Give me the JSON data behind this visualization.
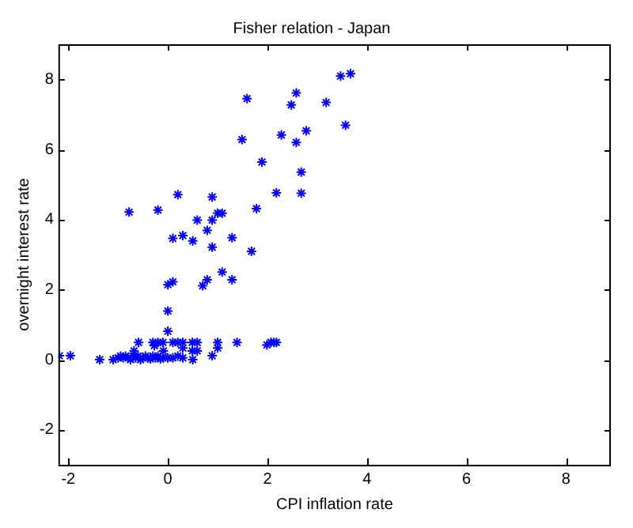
{
  "chart_data": {
    "type": "scatter",
    "title": "Fisher relation - Japan",
    "xlabel": "CPI inflation rate",
    "ylabel": "overnight interest rate",
    "marker": "cross",
    "grid": false,
    "xlim": [
      -2.2,
      8.9
    ],
    "ylim": [
      -3,
      9
    ],
    "xticks": [
      -2,
      0,
      2,
      4,
      6,
      8
    ],
    "yticks": [
      -2,
      0,
      2,
      4,
      6,
      8
    ],
    "series": [
      {
        "color": "#0000ff",
        "x": [
          3.67,
          3.47,
          2.58,
          1.59,
          2.48,
          3.18,
          3.57,
          2.78,
          2.28,
          1.49,
          2.58,
          1.89,
          2.68,
          2.18,
          2.68,
          1.78,
          0.2,
          0.89,
          -0.78,
          -0.2,
          1.0,
          1.09,
          0.59,
          0.89,
          0.79,
          0.1,
          0.3,
          0.5,
          1.29,
          0.89,
          1.68,
          1.09,
          1.29,
          0.79,
          0.7,
          0,
          0.1,
          0,
          0,
          -0.59,
          -0.3,
          -0.2,
          -0.1,
          0.1,
          0.2,
          0.3,
          0.49,
          0.59,
          1.0,
          1.39,
          1.99,
          2.07,
          2.13,
          2.18,
          1.0,
          0.3,
          -0.27,
          -0.68,
          0.49,
          0.59,
          -0.09,
          -2.18,
          -1.96,
          0.89,
          -1.37,
          0.5,
          -1.1,
          -1.0,
          -0.95,
          -0.9,
          -0.85,
          -0.8,
          -0.7,
          -0.65,
          -0.6,
          -0.5,
          -0.45,
          -0.4,
          -0.3,
          -0.25,
          -0.2,
          -0.1,
          0,
          0.1,
          0.2,
          0.3,
          -0.75,
          -0.55,
          -0.35,
          -0.15
        ],
        "values": [
          8.16,
          8.09,
          7.61,
          7.45,
          7.27,
          7.34,
          6.69,
          6.53,
          6.41,
          6.28,
          6.2,
          5.64,
          5.35,
          4.76,
          4.75,
          4.31,
          4.71,
          4.64,
          4.21,
          4.27,
          4.18,
          4.18,
          3.98,
          3.98,
          3.69,
          3.46,
          3.54,
          3.39,
          3.48,
          3.21,
          3.09,
          2.5,
          2.28,
          2.28,
          2.11,
          2.14,
          2.22,
          1.39,
          0.81,
          0.49,
          0.49,
          0.49,
          0.49,
          0.49,
          0.49,
          0.49,
          0.49,
          0.49,
          0.49,
          0.49,
          0.42,
          0.49,
          0.49,
          0.49,
          0.33,
          0.33,
          0.4,
          0.25,
          0.25,
          0.25,
          0.25,
          0.11,
          0.11,
          0.11,
          0,
          0,
          0,
          0.05,
          0.1,
          0.05,
          0.1,
          0.05,
          0.1,
          0.05,
          0.1,
          0.05,
          0.1,
          0.05,
          0.1,
          0.05,
          0.1,
          0.05,
          0.05,
          0.05,
          0.1,
          0.05,
          0,
          0,
          0.02,
          0.02
        ]
      }
    ]
  }
}
